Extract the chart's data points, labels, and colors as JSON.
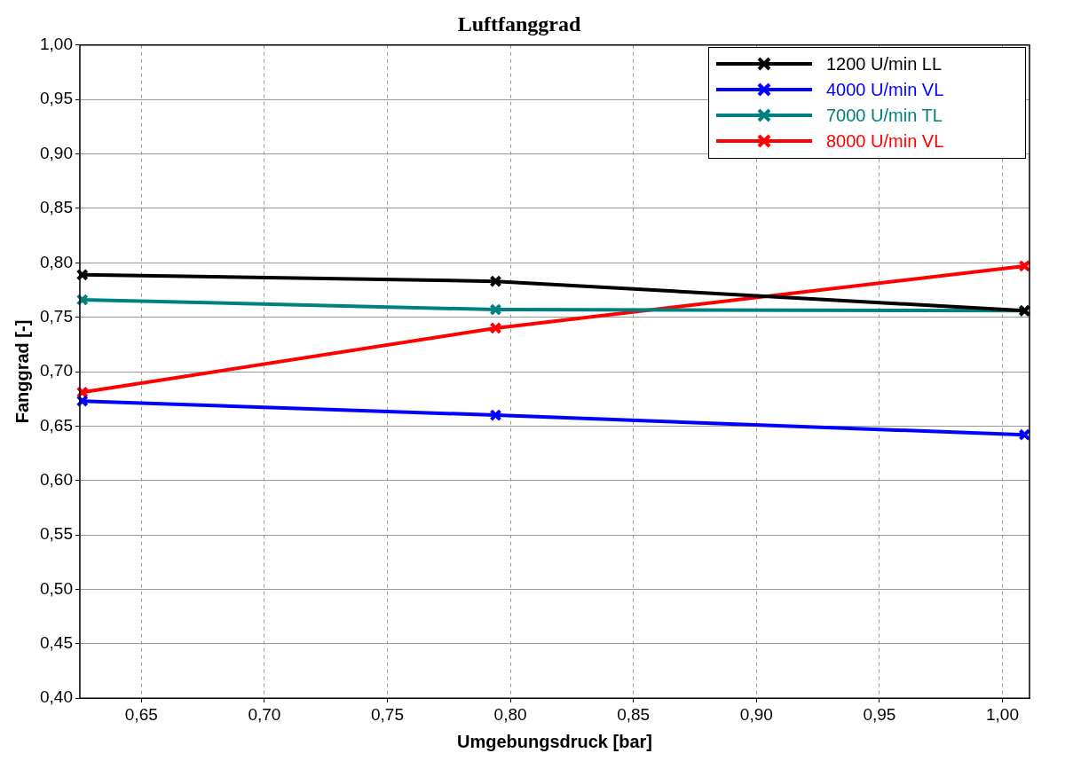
{
  "chart_data": {
    "type": "line",
    "title": "Luftfanggrad",
    "xlabel": "Umgebungsdruck [bar]",
    "ylabel": "Fanggrad [-]",
    "xlim": [
      0.625,
      1.011
    ],
    "xticks": [
      {
        "value": 0.65,
        "label": "0,65"
      },
      {
        "value": 0.7,
        "label": "0,70"
      },
      {
        "value": 0.75,
        "label": "0,75"
      },
      {
        "value": 0.8,
        "label": "0,80"
      },
      {
        "value": 0.85,
        "label": "0,85"
      },
      {
        "value": 0.9,
        "label": "0,90"
      },
      {
        "value": 0.95,
        "label": "0,95"
      },
      {
        "value": 1.0,
        "label": "1,00"
      }
    ],
    "ylim": [
      0.4,
      1.0
    ],
    "yticks": [
      {
        "value": 0.4,
        "label": "0,40"
      },
      {
        "value": 0.45,
        "label": "0,45"
      },
      {
        "value": 0.5,
        "label": "0,50"
      },
      {
        "value": 0.55,
        "label": "0,55"
      },
      {
        "value": 0.6,
        "label": "0,60"
      },
      {
        "value": 0.65,
        "label": "0,65"
      },
      {
        "value": 0.7,
        "label": "0,70"
      },
      {
        "value": 0.75,
        "label": "0,75"
      },
      {
        "value": 0.8,
        "label": "0,80"
      },
      {
        "value": 0.85,
        "label": "0,85"
      },
      {
        "value": 0.9,
        "label": "0,90"
      },
      {
        "value": 0.95,
        "label": "0,95"
      },
      {
        "value": 1.0,
        "label": "1,00"
      }
    ],
    "x": [
      0.626,
      0.794,
      1.009
    ],
    "series": [
      {
        "name": "1200 U/min LL",
        "color": "#000000",
        "values": [
          0.789,
          0.783,
          0.756
        ]
      },
      {
        "name": "4000 U/min VL",
        "color": "#0000ff",
        "values": [
          0.673,
          0.66,
          0.642
        ]
      },
      {
        "name": "7000 U/min TL",
        "color": "#008080",
        "values": [
          0.766,
          0.757,
          0.756
        ]
      },
      {
        "name": "8000 U/min VL",
        "color": "#ff0000",
        "values": [
          0.681,
          0.74,
          0.797
        ]
      }
    ],
    "grid": true,
    "legend": "top right",
    "marker": "cross",
    "line_style": "solid"
  }
}
